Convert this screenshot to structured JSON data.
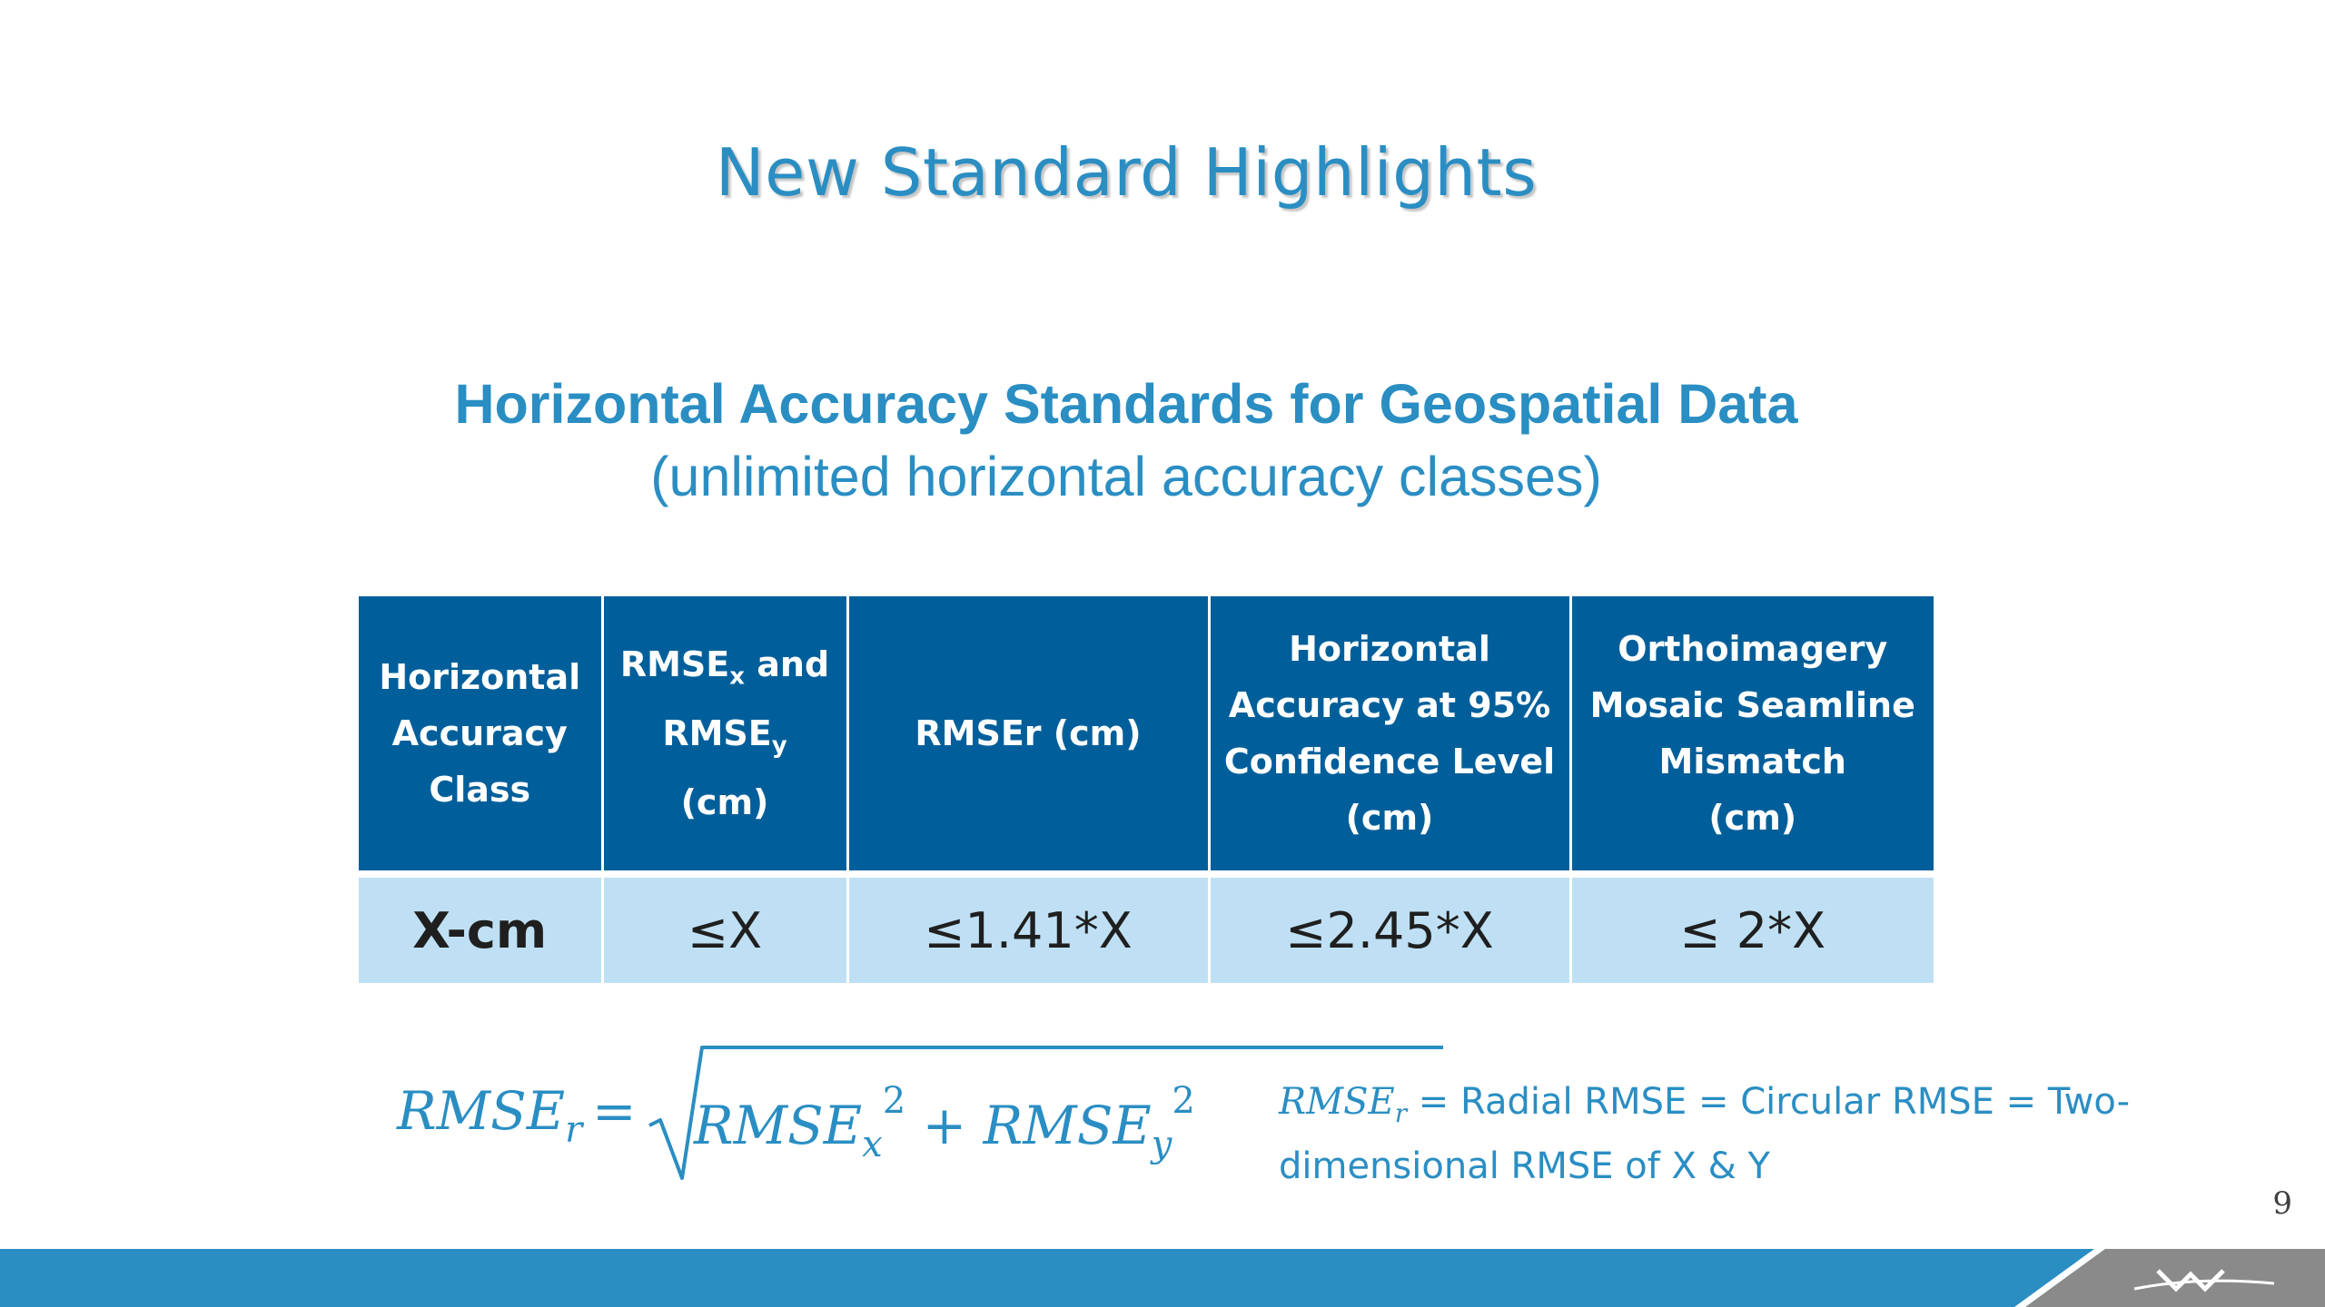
{
  "slide": {
    "title": "New Standard Highlights",
    "subtitle_main": "Horizontal Accuracy Standards for Geospatial Data",
    "subtitle_sub": "(unlimited horizontal accuracy classes)",
    "page_number": "9"
  },
  "table": {
    "headers": [
      [
        "Horizontal",
        "Accuracy",
        "Class"
      ],
      [
        "RMSE",
        "x",
        " and",
        "RMSE",
        "y",
        " (cm)"
      ],
      [
        "RMSEr (cm)"
      ],
      [
        "Horizontal",
        "Accuracy at 95%",
        "Confidence Level",
        "(cm)"
      ],
      [
        "Orthoimagery",
        "Mosaic Seamline",
        "Mismatch",
        "(cm)"
      ]
    ],
    "row": [
      "X-cm",
      "≤X",
      "≤1.41*X",
      "≤2.45*X",
      "≤ 2*X"
    ]
  },
  "formula": {
    "lhs_base": "RMSE",
    "lhs_sub": "r",
    "equals": "=",
    "term1_base": "RMSE",
    "term1_sub": "x",
    "term1_sup": "2",
    "plus": " + ",
    "term2_base": "RMSE",
    "term2_sub": "y",
    "term2_sup": "2"
  },
  "definition": {
    "symbol_base": "RMSE",
    "symbol_sub": "r",
    "text_line1": " = Radial RMSE = Circular RMSE = Two-",
    "text_line2": "dimensional RMSE of X & Y"
  },
  "colors": {
    "accent": "#2a8ec3",
    "header_bg": "#005f9a",
    "row_bg": "#bfe0f4",
    "footer_blue": "#2a8ec3",
    "footer_gray": "#8a8a8a"
  },
  "icons": {
    "footer_logo": "stylized-w-logo-icon"
  }
}
